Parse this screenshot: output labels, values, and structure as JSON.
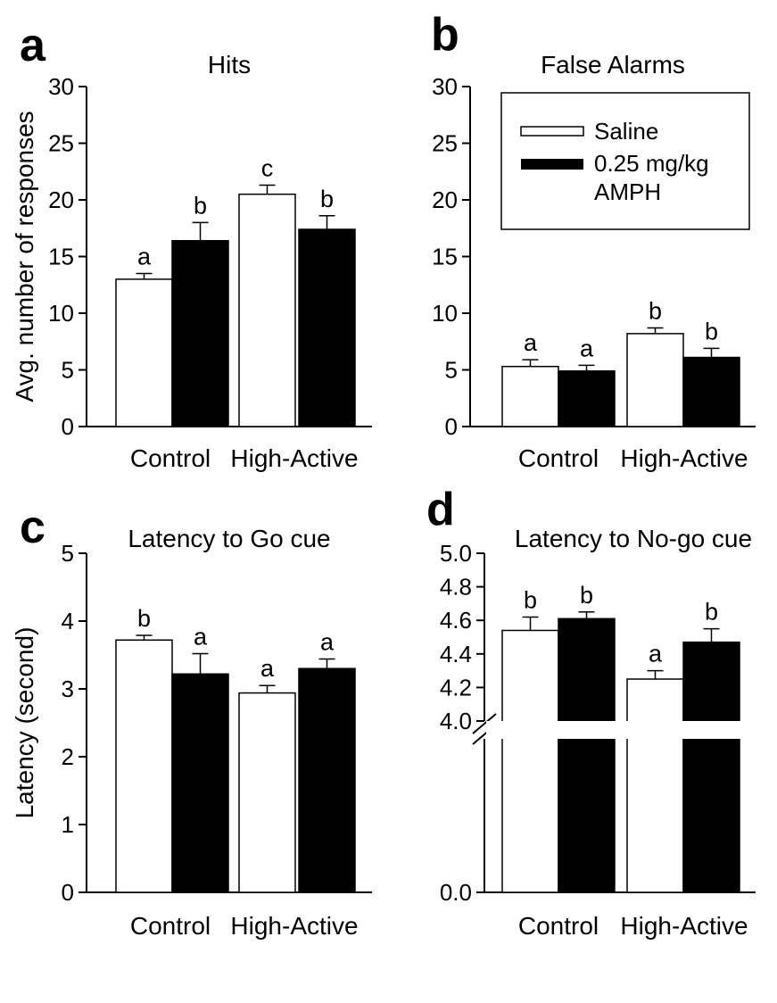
{
  "chart_data": [
    {
      "type": "bar",
      "panel_letter": "a",
      "title": "Hits",
      "ylabel": "Avg. number of responses",
      "ylim": [
        0,
        30
      ],
      "yticks": [
        "0",
        "5",
        "10",
        "15",
        "20",
        "25",
        "30"
      ],
      "categories": [
        "Control",
        "High-Active"
      ],
      "series": [
        {
          "name": "Saline",
          "color": "#ffffff",
          "values": [
            13.0,
            20.5
          ],
          "errors": [
            0.5,
            0.8
          ],
          "sig": [
            "a",
            "c"
          ]
        },
        {
          "name": "0.25 mg/kg AMPH",
          "color": "#000000",
          "values": [
            16.4,
            17.4
          ],
          "errors": [
            1.6,
            1.2
          ],
          "sig": [
            "b",
            "b"
          ]
        }
      ]
    },
    {
      "type": "bar",
      "panel_letter": "b",
      "title": "False Alarms",
      "ylim": [
        0,
        30
      ],
      "yticks": [
        "0",
        "5",
        "10",
        "15",
        "20",
        "25",
        "30"
      ],
      "categories": [
        "Control",
        "High-Active"
      ],
      "legend": {
        "position": "top-right",
        "entries": [
          "Saline",
          "0.25 mg/kg",
          "AMPH"
        ]
      },
      "series": [
        {
          "name": "Saline",
          "color": "#ffffff",
          "values": [
            5.3,
            8.2
          ],
          "errors": [
            0.6,
            0.5
          ],
          "sig": [
            "a",
            "b"
          ]
        },
        {
          "name": "0.25 mg/kg AMPH",
          "color": "#000000",
          "values": [
            4.9,
            6.1
          ],
          "errors": [
            0.5,
            0.8
          ],
          "sig": [
            "a",
            "b"
          ]
        }
      ]
    },
    {
      "type": "bar",
      "panel_letter": "c",
      "title": "Latency to Go cue",
      "ylabel": "Latency (second)",
      "ylim": [
        0,
        5
      ],
      "yticks": [
        "0",
        "1",
        "2",
        "3",
        "4",
        "5"
      ],
      "categories": [
        "Control",
        "High-Active"
      ],
      "series": [
        {
          "name": "Saline",
          "color": "#ffffff",
          "values": [
            3.72,
            2.94
          ],
          "errors": [
            0.07,
            0.11
          ],
          "sig": [
            "b",
            "a"
          ]
        },
        {
          "name": "0.25 mg/kg AMPH",
          "color": "#000000",
          "values": [
            3.22,
            3.3
          ],
          "errors": [
            0.3,
            0.14
          ],
          "sig": [
            "a",
            "a"
          ]
        }
      ]
    },
    {
      "type": "bar",
      "panel_letter": "d",
      "title": "Latency to No-go cue",
      "ylim": [
        4.0,
        5.0
      ],
      "axis_break": true,
      "yticks": [
        "0.0",
        "4.0",
        "4.2",
        "4.4",
        "4.6",
        "4.8",
        "5.0"
      ],
      "categories": [
        "Control",
        "High-Active"
      ],
      "series": [
        {
          "name": "Saline",
          "color": "#ffffff",
          "values": [
            4.54,
            4.25
          ],
          "errors": [
            0.08,
            0.05
          ],
          "sig": [
            "b",
            "a"
          ]
        },
        {
          "name": "0.25 mg/kg AMPH",
          "color": "#000000",
          "values": [
            4.61,
            4.47
          ],
          "errors": [
            0.04,
            0.08
          ],
          "sig": [
            "b",
            "b"
          ]
        }
      ]
    }
  ]
}
